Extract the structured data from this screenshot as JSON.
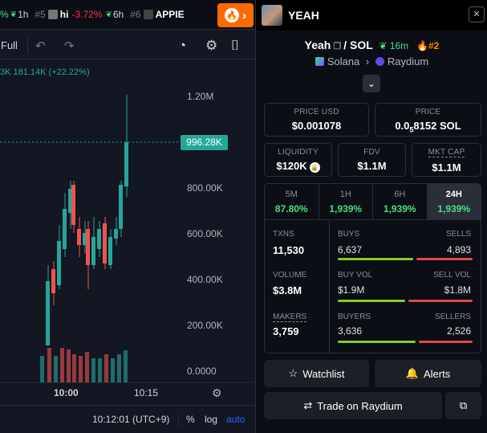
{
  "ticker_bar": {
    "items": [
      {
        "rank": "",
        "change": "%",
        "age": "1h"
      },
      {
        "rank": "#5",
        "symbol": "hi",
        "change": "-3.72%",
        "age": "6h"
      },
      {
        "rank": "#6",
        "symbol": "APPIE"
      }
    ]
  },
  "toolbar": {
    "full_label": "Full"
  },
  "ohlc": {
    "text": "3K  181.14K (+22.22%)"
  },
  "yaxis": {
    "ticks": [
      "1.20M",
      "800.00K",
      "600.00K",
      "400.00K",
      "200.00K",
      "0.0000"
    ],
    "current_price": "996.28K"
  },
  "xaxis": {
    "ticks": [
      "10:00",
      "10:15"
    ]
  },
  "footer": {
    "time": "10:12:01 (UTC+9)",
    "pct": "%",
    "log": "log",
    "auto": "auto"
  },
  "token": {
    "name": "YEAH",
    "pair_base": "Yeah",
    "pair_quote": "/ SOL",
    "age": "16m",
    "rank": "#2",
    "chain": "Solana",
    "dex": "Raydium"
  },
  "price": {
    "usd_label": "PRICE USD",
    "usd_value": "$0.001078",
    "sol_label": "PRICE",
    "sol_value_a": "0.0",
    "sol_value_sub": "5",
    "sol_value_b": "8152 SOL"
  },
  "metrics": {
    "liquidity_label": "LIQUIDITY",
    "liquidity_value": "$120K",
    "fdv_label": "FDV",
    "fdv_value": "$1.1M",
    "mcap_label": "MKT CAP",
    "mcap_value": "$1.1M"
  },
  "periods": [
    {
      "label": "5M",
      "value": "87.80%"
    },
    {
      "label": "1H",
      "value": "1,939%"
    },
    {
      "label": "6H",
      "value": "1,939%"
    },
    {
      "label": "24H",
      "value": "1,939%"
    }
  ],
  "stats": {
    "txns_label": "TXNS",
    "txns_value": "11,530",
    "buys_label": "BUYS",
    "buys_value": "6,637",
    "sells_label": "SELLS",
    "sells_value": "4,893",
    "volume_label": "VOLUME",
    "volume_value": "$3.8M",
    "buyvol_label": "BUY VOL",
    "buyvol_value": "$1.9M",
    "sellvol_label": "SELL VOL",
    "sellvol_value": "$1.8M",
    "makers_label": "MAKERS",
    "makers_value": "3,759",
    "buyers_label": "BUYERS",
    "buyers_value": "3,636",
    "sellers_label": "SELLERS",
    "sellers_value": "2,526"
  },
  "ratios": {
    "buys": 0.576,
    "buy_vol": 0.51,
    "buyers": 0.59
  },
  "actions": {
    "watchlist": "Watchlist",
    "alerts": "Alerts",
    "trade": "Trade on Raydium"
  },
  "colors": {
    "up": "#26a69a",
    "down": "#ef5350",
    "accent": "#ff6a00",
    "positive": "#4ade80",
    "buy_bar": "#8ac926",
    "sell_bar": "#e04848"
  }
}
